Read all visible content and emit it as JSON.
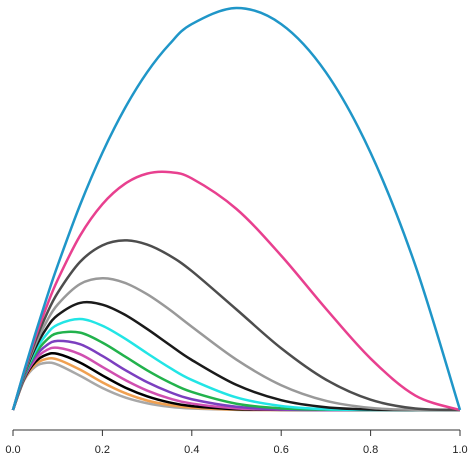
{
  "chart_data": {
    "type": "line",
    "x": [
      0,
      0.025,
      0.05,
      0.075,
      0.1,
      0.15,
      0.2,
      0.25,
      0.3,
      0.35,
      0.4,
      0.5,
      0.6,
      0.7,
      0.8,
      0.9,
      1.0
    ],
    "series": [
      {
        "color": "#1f96c8",
        "values": [
          0,
          0.0244,
          0.0475,
          0.0694,
          0.09,
          0.1275,
          0.16,
          0.1875,
          0.21,
          0.2275,
          0.24,
          0.25,
          0.24,
          0.21,
          0.16,
          0.09,
          0
        ]
      },
      {
        "color": "#e8408f",
        "values": [
          0,
          0.0238,
          0.0451,
          0.0642,
          0.081,
          0.1084,
          0.128,
          0.1406,
          0.147,
          0.1479,
          0.144,
          0.125,
          0.096,
          0.063,
          0.032,
          0.009,
          0
        ]
      },
      {
        "color": "#4d4d4d",
        "values": [
          0,
          0.0232,
          0.0429,
          0.0594,
          0.0729,
          0.0921,
          0.1024,
          0.1055,
          0.1029,
          0.0961,
          0.0864,
          0.0625,
          0.0384,
          0.0189,
          0.0064,
          0.0009,
          0
        ]
      },
      {
        "color": "#999999",
        "values": [
          0,
          0.0226,
          0.0407,
          0.0549,
          0.0656,
          0.0783,
          0.0819,
          0.0791,
          0.072,
          0.0625,
          0.0518,
          0.0313,
          0.0154,
          0.0057,
          0.0013,
          0.0001,
          0
        ]
      },
      {
        "color": "#1a1a1a",
        "values": [
          0,
          0.022,
          0.0387,
          0.0508,
          0.059,
          0.0666,
          0.0655,
          0.0593,
          0.0504,
          0.0406,
          0.0311,
          0.0156,
          0.0061,
          0.0017,
          0.0003,
          0,
          0
        ]
      },
      {
        "color": "#22e5e5",
        "values": [
          0,
          0.0215,
          0.0368,
          0.047,
          0.0531,
          0.0566,
          0.0524,
          0.0445,
          0.0353,
          0.0264,
          0.0187,
          0.0078,
          0.0025,
          0.0005,
          0.0001,
          0,
          0
        ]
      },
      {
        "color": "#22b24c",
        "values": [
          0,
          0.0209,
          0.0349,
          0.0435,
          0.0478,
          0.0481,
          0.0419,
          0.0334,
          0.0247,
          0.0172,
          0.0112,
          0.0039,
          0.001,
          0.0002,
          0,
          0,
          0
        ]
      },
      {
        "color": "#7b3fbf",
        "values": [
          0,
          0.0204,
          0.0332,
          0.0402,
          0.043,
          0.0409,
          0.0336,
          0.025,
          0.0173,
          0.0112,
          0.0067,
          0.002,
          0.0004,
          0,
          0,
          0,
          0
        ]
      },
      {
        "color": "#d04fb0",
        "values": [
          0,
          0.0199,
          0.0315,
          0.0372,
          0.0387,
          0.0347,
          0.0268,
          0.0188,
          0.0121,
          0.0072,
          0.004,
          0.001,
          0.0002,
          0,
          0,
          0,
          0
        ]
      },
      {
        "color": "#000000",
        "values": [
          0,
          0.0194,
          0.0299,
          0.0344,
          0.0349,
          0.0295,
          0.0215,
          0.0141,
          0.0085,
          0.0047,
          0.0024,
          0.0005,
          0.0001,
          0,
          0,
          0,
          0
        ]
      },
      {
        "color": "#f0a050",
        "values": [
          0,
          0.0189,
          0.0284,
          0.0318,
          0.0314,
          0.0251,
          0.0172,
          0.0106,
          0.0059,
          0.0031,
          0.0015,
          0.0002,
          0,
          0,
          0,
          0,
          0
        ]
      },
      {
        "color": "#a8a8a8",
        "values": [
          0,
          0.0185,
          0.027,
          0.0294,
          0.0282,
          0.0213,
          0.0137,
          0.0079,
          0.0042,
          0.002,
          0.0009,
          0.0001,
          0,
          0,
          0,
          0,
          0
        ]
      }
    ],
    "xlim": [
      0,
      1.0
    ],
    "ylim": [
      0,
      0.25
    ],
    "xticks": [
      {
        "value": 0,
        "label": "0.0"
      },
      0.2,
      0.4,
      0.6,
      0.8,
      {
        "value": 1.0,
        "label": "1.0"
      }
    ]
  }
}
